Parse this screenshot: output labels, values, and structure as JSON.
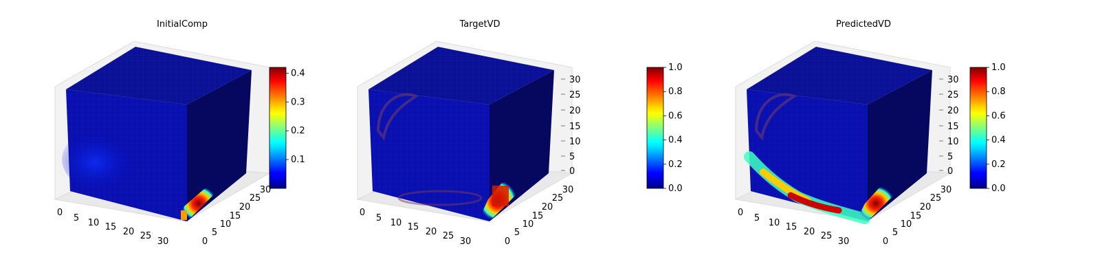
{
  "chart_data": [
    {
      "type": "voxel-3d",
      "title": "InitialComp",
      "xticks": [
        "0",
        "5",
        "10",
        "15",
        "20",
        "25",
        "30"
      ],
      "yticks": [
        "0",
        "5",
        "10",
        "15",
        "20",
        "25",
        "30"
      ],
      "zticks": [],
      "xlim": [
        0,
        32
      ],
      "ylim": [
        0,
        32
      ],
      "zlim": [
        0,
        32
      ],
      "colorbar": {
        "cmap": "jet",
        "min": 0.0,
        "max": 0.42,
        "ticks": [
          "0.1",
          "0.2",
          "0.3",
          "0.4"
        ]
      },
      "max_value_region": "front-right bottom corner (x≈30-32, y≈0-8, z≈0-4)"
    },
    {
      "type": "voxel-3d",
      "title": "TargetVD",
      "xticks": [
        "0",
        "5",
        "10",
        "15",
        "20",
        "25",
        "30"
      ],
      "yticks": [
        "0",
        "5",
        "10",
        "15",
        "20",
        "25",
        "30"
      ],
      "zticks": [
        "0",
        "5",
        "10",
        "15",
        "20",
        "25",
        "30"
      ],
      "xlim": [
        0,
        32
      ],
      "ylim": [
        0,
        32
      ],
      "zlim": [
        0,
        32
      ],
      "colorbar": {
        "cmap": "jet",
        "min": 0.0,
        "max": 1.0,
        "ticks": [
          "0.0",
          "0.2",
          "0.4",
          "0.6",
          "0.8",
          "1.0"
        ]
      },
      "max_value_region": "front-right bottom corner (x≈28-32, y≈0-8, z≈0-8)"
    },
    {
      "type": "voxel-3d",
      "title": "PredictedVD",
      "xticks": [
        "0",
        "5",
        "10",
        "15",
        "20",
        "25",
        "30"
      ],
      "yticks": [
        "0",
        "5",
        "10",
        "15",
        "20",
        "25",
        "30"
      ],
      "zticks": [
        "0",
        "5",
        "10",
        "15",
        "20",
        "25",
        "30"
      ],
      "xlim": [
        0,
        32
      ],
      "ylim": [
        0,
        32
      ],
      "zlim": [
        0,
        32
      ],
      "colorbar": {
        "cmap": "jet",
        "min": 0.0,
        "max": 1.0,
        "ticks": [
          "0.0",
          "0.2",
          "0.4",
          "0.6",
          "0.8",
          "1.0"
        ]
      },
      "max_value_region": "arc along the front face from left edge (z≈10) down to bottom (x≈12-20) and front-right bottom corner"
    }
  ]
}
